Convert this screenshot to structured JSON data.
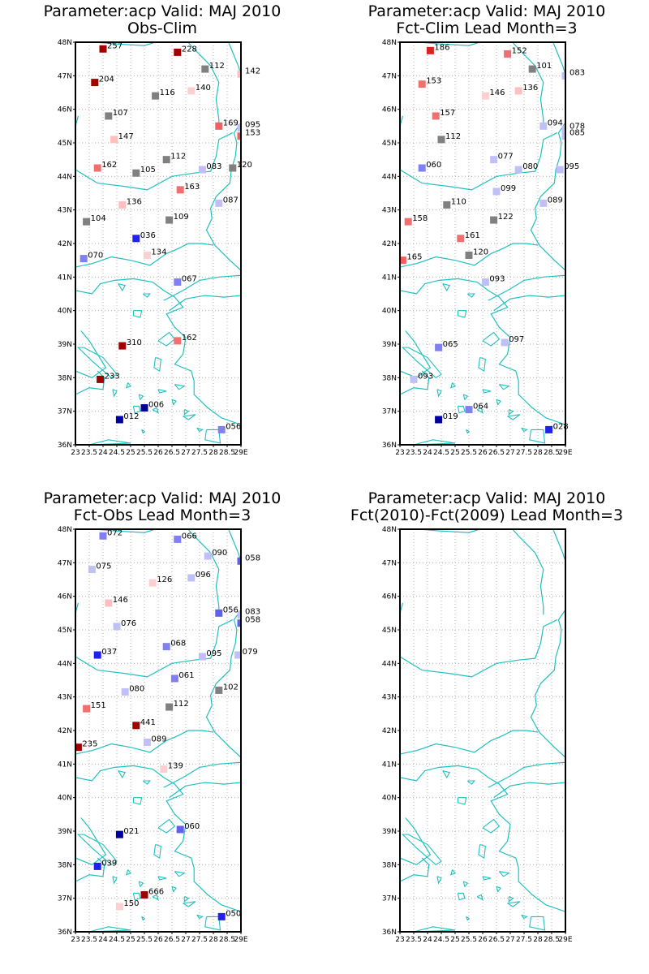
{
  "map_extent": {
    "lon_min": 23,
    "lon_max": 29,
    "lat_min": 36,
    "lat_max": 48
  },
  "coastline_color": "#20c0c0",
  "grid_color": "#b0b0b0",
  "lat_ticks": [
    "36N",
    "37N",
    "38N",
    "39N",
    "40N",
    "41N",
    "42N",
    "43N",
    "44N",
    "45N",
    "46N",
    "47N",
    "48N"
  ],
  "lon_ticks": [
    "23",
    "23.5",
    "24",
    "24.5",
    "25",
    "25.5",
    "26",
    "26.5",
    "27",
    "27.5",
    "28",
    "28.5",
    "29E"
  ],
  "color_scale": {
    "low": "#0000a0",
    "mid": "#808080",
    "high": "#a00000"
  },
  "panels": [
    {
      "title_line1": "Parameter:acp Valid: MAJ 2010",
      "title_line2": "Obs-Clim",
      "stations": [
        {
          "lon": 24.0,
          "lat": 47.8,
          "label": "257",
          "color": "#a00000"
        },
        {
          "lon": 26.7,
          "lat": 47.7,
          "label": "228",
          "color": "#a00000"
        },
        {
          "lon": 27.7,
          "lat": 47.2,
          "label": "112",
          "color": "#808080"
        },
        {
          "lon": 29.0,
          "lat": 47.05,
          "label": "142",
          "color": "#fcc0c0"
        },
        {
          "lon": 23.7,
          "lat": 46.8,
          "label": "204",
          "color": "#a00000"
        },
        {
          "lon": 27.2,
          "lat": 46.55,
          "label": "140",
          "color": "#fcd0d0"
        },
        {
          "lon": 25.9,
          "lat": 46.4,
          "label": "116",
          "color": "#808080"
        },
        {
          "lon": 24.2,
          "lat": 45.8,
          "label": "107",
          "color": "#808080"
        },
        {
          "lon": 28.2,
          "lat": 45.5,
          "label": "169",
          "color": "#f06060"
        },
        {
          "lon": 29.0,
          "lat": 45.45,
          "label": "095",
          "color": "#c0c0f8"
        },
        {
          "lon": 29.0,
          "lat": 45.2,
          "label": "153",
          "color": "#f06060"
        },
        {
          "lon": 24.4,
          "lat": 45.1,
          "label": "147",
          "color": "#fcc0c0"
        },
        {
          "lon": 26.3,
          "lat": 44.5,
          "label": "112",
          "color": "#808080"
        },
        {
          "lon": 23.8,
          "lat": 44.25,
          "label": "162",
          "color": "#f07070"
        },
        {
          "lon": 25.2,
          "lat": 44.1,
          "label": "105",
          "color": "#808080"
        },
        {
          "lon": 27.6,
          "lat": 44.2,
          "label": "083",
          "color": "#c0c0f8"
        },
        {
          "lon": 28.7,
          "lat": 44.25,
          "label": "120",
          "color": "#808080"
        },
        {
          "lon": 26.8,
          "lat": 43.6,
          "label": "163",
          "color": "#f07070"
        },
        {
          "lon": 28.2,
          "lat": 43.2,
          "label": "087",
          "color": "#c0c0f8"
        },
        {
          "lon": 24.7,
          "lat": 43.15,
          "label": "136",
          "color": "#fcc0c0"
        },
        {
          "lon": 23.4,
          "lat": 42.65,
          "label": "104",
          "color": "#808080"
        },
        {
          "lon": 26.4,
          "lat": 42.7,
          "label": "109",
          "color": "#808080"
        },
        {
          "lon": 25.2,
          "lat": 42.15,
          "label": "036",
          "color": "#2020f0"
        },
        {
          "lon": 25.6,
          "lat": 41.65,
          "label": "134",
          "color": "#fcd0d0"
        },
        {
          "lon": 23.3,
          "lat": 41.55,
          "label": "070",
          "color": "#8080f0"
        },
        {
          "lon": 26.7,
          "lat": 40.85,
          "label": "067",
          "color": "#8080f0"
        },
        {
          "lon": 24.7,
          "lat": 38.95,
          "label": "310",
          "color": "#a00000"
        },
        {
          "lon": 26.7,
          "lat": 39.1,
          "label": "162",
          "color": "#f07070"
        },
        {
          "lon": 23.9,
          "lat": 37.95,
          "label": "233",
          "color": "#a00000"
        },
        {
          "lon": 25.5,
          "lat": 37.1,
          "label": "006",
          "color": "#0000a0"
        },
        {
          "lon": 24.6,
          "lat": 36.75,
          "label": "012",
          "color": "#0000a0"
        },
        {
          "lon": 28.3,
          "lat": 36.45,
          "label": "056",
          "color": "#8080f0"
        }
      ]
    },
    {
      "title_line1": "Parameter:acp Valid: MAJ 2010",
      "title_line2": "Fct-Clim Lead Month=3",
      "stations": [
        {
          "lon": 24.1,
          "lat": 47.75,
          "label": "186",
          "color": "#e02020"
        },
        {
          "lon": 26.9,
          "lat": 47.65,
          "label": "152",
          "color": "#f07070"
        },
        {
          "lon": 27.8,
          "lat": 47.2,
          "label": "101",
          "color": "#808080"
        },
        {
          "lon": 29.0,
          "lat": 47.0,
          "label": "083",
          "color": "#c0c0f8"
        },
        {
          "lon": 23.8,
          "lat": 46.75,
          "label": "153",
          "color": "#f07070"
        },
        {
          "lon": 27.3,
          "lat": 46.55,
          "label": "136",
          "color": "#fcc0c0"
        },
        {
          "lon": 26.1,
          "lat": 46.4,
          "label": "146",
          "color": "#fcd0d0"
        },
        {
          "lon": 24.3,
          "lat": 45.8,
          "label": "157",
          "color": "#f07070"
        },
        {
          "lon": 28.2,
          "lat": 45.5,
          "label": "094",
          "color": "#c0c0f8"
        },
        {
          "lon": 29.0,
          "lat": 45.4,
          "label": "078",
          "color": "#c0c0f8"
        },
        {
          "lon": 29.0,
          "lat": 45.2,
          "label": "085",
          "color": "#c0c0f8"
        },
        {
          "lon": 24.5,
          "lat": 45.1,
          "label": "112",
          "color": "#808080"
        },
        {
          "lon": 26.4,
          "lat": 44.5,
          "label": "077",
          "color": "#c0c0f8"
        },
        {
          "lon": 23.8,
          "lat": 44.25,
          "label": "060",
          "color": "#8080f0"
        },
        {
          "lon": 27.3,
          "lat": 44.2,
          "label": "080",
          "color": "#c0c0f8"
        },
        {
          "lon": 28.8,
          "lat": 44.2,
          "label": "095",
          "color": "#c0c0f8"
        },
        {
          "lon": 26.5,
          "lat": 43.55,
          "label": "099",
          "color": "#c0c0f8"
        },
        {
          "lon": 28.2,
          "lat": 43.2,
          "label": "089",
          "color": "#c0c0f8"
        },
        {
          "lon": 24.7,
          "lat": 43.15,
          "label": "110",
          "color": "#808080"
        },
        {
          "lon": 23.3,
          "lat": 42.65,
          "label": "158",
          "color": "#f07070"
        },
        {
          "lon": 26.4,
          "lat": 42.7,
          "label": "122",
          "color": "#808080"
        },
        {
          "lon": 25.2,
          "lat": 42.15,
          "label": "161",
          "color": "#f07070"
        },
        {
          "lon": 25.5,
          "lat": 41.65,
          "label": "120",
          "color": "#808080"
        },
        {
          "lon": 23.1,
          "lat": 41.5,
          "label": "165",
          "color": "#f06060"
        },
        {
          "lon": 26.1,
          "lat": 40.85,
          "label": "093",
          "color": "#c0c0f8"
        },
        {
          "lon": 24.4,
          "lat": 38.9,
          "label": "065",
          "color": "#8080f0"
        },
        {
          "lon": 26.8,
          "lat": 39.05,
          "label": "097",
          "color": "#c0c0f8"
        },
        {
          "lon": 23.5,
          "lat": 37.95,
          "label": "093",
          "color": "#c0c0f8"
        },
        {
          "lon": 25.5,
          "lat": 37.05,
          "label": "064",
          "color": "#8080f0"
        },
        {
          "lon": 24.4,
          "lat": 36.75,
          "label": "019",
          "color": "#0000a0"
        },
        {
          "lon": 28.4,
          "lat": 36.45,
          "label": "028",
          "color": "#2020f0"
        }
      ]
    },
    {
      "title_line1": "Parameter:acp Valid: MAJ 2010",
      "title_line2": "Fct-Obs Lead Month=3",
      "stations": [
        {
          "lon": 24.0,
          "lat": 47.8,
          "label": "072",
          "color": "#8080f0"
        },
        {
          "lon": 26.7,
          "lat": 47.7,
          "label": "066",
          "color": "#8080f0"
        },
        {
          "lon": 27.8,
          "lat": 47.2,
          "label": "090",
          "color": "#c0c0f8"
        },
        {
          "lon": 29.0,
          "lat": 47.05,
          "label": "058",
          "color": "#6060f0"
        },
        {
          "lon": 23.6,
          "lat": 46.8,
          "label": "075",
          "color": "#c0c0f8"
        },
        {
          "lon": 27.2,
          "lat": 46.55,
          "label": "096",
          "color": "#c0c0f8"
        },
        {
          "lon": 25.8,
          "lat": 46.4,
          "label": "126",
          "color": "#fcd0d0"
        },
        {
          "lon": 24.2,
          "lat": 45.8,
          "label": "146",
          "color": "#fcc0c0"
        },
        {
          "lon": 28.2,
          "lat": 45.5,
          "label": "056",
          "color": "#6060f0"
        },
        {
          "lon": 29.0,
          "lat": 45.45,
          "label": "083",
          "color": "#c0c0f8"
        },
        {
          "lon": 29.0,
          "lat": 45.2,
          "label": "058",
          "color": "#6060f0"
        },
        {
          "lon": 24.5,
          "lat": 45.1,
          "label": "076",
          "color": "#c0c0f8"
        },
        {
          "lon": 26.3,
          "lat": 44.5,
          "label": "068",
          "color": "#8080f0"
        },
        {
          "lon": 23.8,
          "lat": 44.25,
          "label": "037",
          "color": "#2020f0"
        },
        {
          "lon": 27.6,
          "lat": 44.2,
          "label": "095",
          "color": "#c0c0f8"
        },
        {
          "lon": 28.9,
          "lat": 44.25,
          "label": "079",
          "color": "#c0c0f8"
        },
        {
          "lon": 26.6,
          "lat": 43.55,
          "label": "061",
          "color": "#8080f0"
        },
        {
          "lon": 28.2,
          "lat": 43.2,
          "label": "102",
          "color": "#808080"
        },
        {
          "lon": 24.8,
          "lat": 43.15,
          "label": "080",
          "color": "#c0c0f8"
        },
        {
          "lon": 23.4,
          "lat": 42.65,
          "label": "151",
          "color": "#f07070"
        },
        {
          "lon": 26.4,
          "lat": 42.7,
          "label": "112",
          "color": "#808080"
        },
        {
          "lon": 25.2,
          "lat": 42.15,
          "label": "441",
          "color": "#a00000"
        },
        {
          "lon": 25.6,
          "lat": 41.65,
          "label": "089",
          "color": "#c0c0f8"
        },
        {
          "lon": 23.1,
          "lat": 41.5,
          "label": "235",
          "color": "#a00000"
        },
        {
          "lon": 26.2,
          "lat": 40.85,
          "label": "139",
          "color": "#fcd0d0"
        },
        {
          "lon": 24.6,
          "lat": 38.9,
          "label": "021",
          "color": "#0000a0"
        },
        {
          "lon": 26.8,
          "lat": 39.05,
          "label": "060",
          "color": "#6060f0"
        },
        {
          "lon": 23.8,
          "lat": 37.95,
          "label": "039",
          "color": "#2020f0"
        },
        {
          "lon": 25.5,
          "lat": 37.1,
          "label": "666",
          "color": "#a00000"
        },
        {
          "lon": 24.6,
          "lat": 36.75,
          "label": "150",
          "color": "#fcd0d0"
        },
        {
          "lon": 28.3,
          "lat": 36.45,
          "label": "050",
          "color": "#2020f0"
        }
      ]
    },
    {
      "title_line1": "Parameter:acp Valid: MAJ 2010",
      "title_line2": "Fct(2010)-Fct(2009) Lead Month=3",
      "stations": []
    }
  ]
}
